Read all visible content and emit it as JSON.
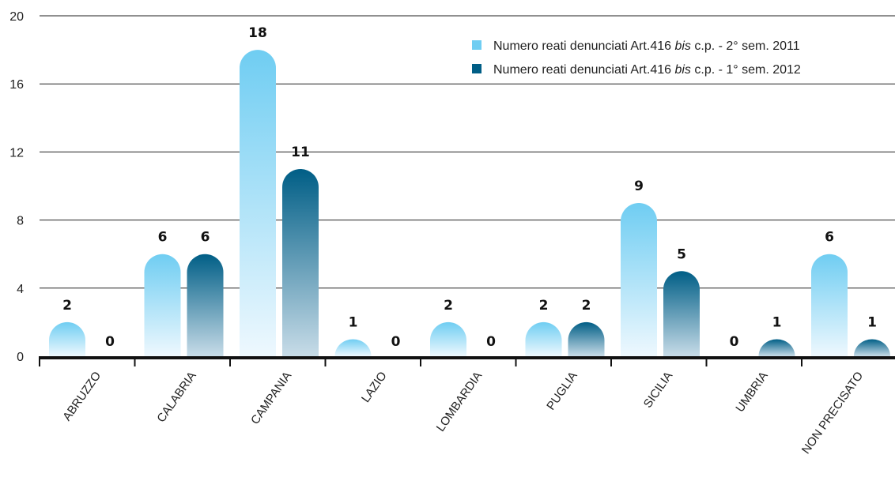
{
  "chart_data": {
    "type": "bar",
    "categories": [
      "ABRUZZO",
      "CALABRIA",
      "CAMPANIA",
      "LAZIO",
      "LOMBARDIA",
      "PUGLIA",
      "SICILIA",
      "UMBRIA",
      "NON PRECISATO"
    ],
    "series": [
      {
        "name_prefix": "Numero reati denunciati Art.416 ",
        "name_italic": "bis",
        "name_suffix": " c.p. - 2° sem. 2011",
        "values": [
          2,
          6,
          18,
          1,
          2,
          2,
          9,
          0,
          6
        ],
        "color": "#6fcdf2",
        "gradient_end": "#eef8fe"
      },
      {
        "name_prefix": "Numero reati denunciati Art.416 ",
        "name_italic": "bis",
        "name_suffix": " c.p. - 1° sem. 2012",
        "values": [
          0,
          6,
          11,
          0,
          0,
          2,
          5,
          1,
          1
        ],
        "color": "#005e86",
        "gradient_end": "#c8dce8"
      }
    ],
    "yticks": [
      "0",
      "4",
      "8",
      "12",
      "16",
      "20"
    ],
    "ylim": [
      0,
      20
    ],
    "grid": true,
    "legend_position": "top-right",
    "value_labels": true
  }
}
